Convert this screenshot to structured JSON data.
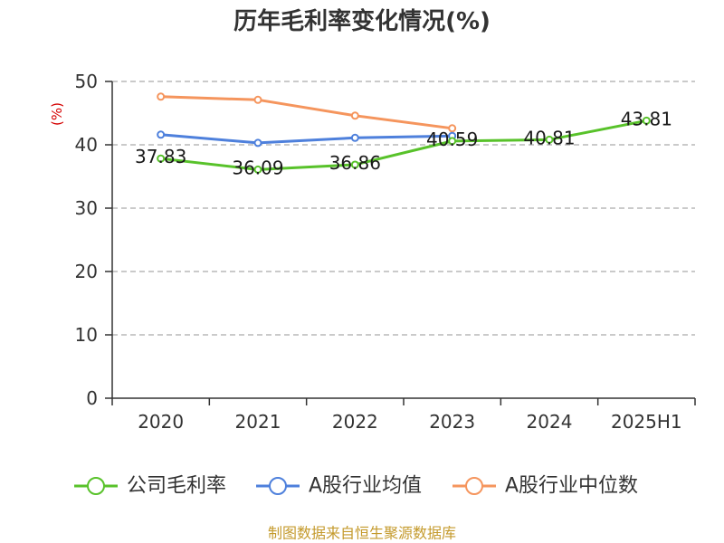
{
  "chart_data": {
    "type": "line",
    "title": "历年毛利率变化情况(%)",
    "ylabel": "(%)",
    "categories": [
      "2020",
      "2021",
      "2022",
      "2023",
      "2024",
      "2025H1"
    ],
    "ylim": [
      0,
      50
    ],
    "yticks": [
      0,
      10,
      20,
      30,
      40,
      50
    ],
    "grid": true,
    "legend": "bottom",
    "series": [
      {
        "name": "公司毛利率",
        "color": "#58c22a",
        "data_labels": true,
        "values": [
          37.83,
          36.09,
          36.86,
          40.59,
          40.81,
          43.81
        ]
      },
      {
        "name": "A股行业均值",
        "color": "#4e80dc",
        "data_labels": false,
        "values": [
          41.6,
          40.3,
          41.1,
          41.4,
          null,
          null
        ]
      },
      {
        "name": "A股行业中位数",
        "color": "#f5955d",
        "data_labels": false,
        "values": [
          47.6,
          47.1,
          44.6,
          42.6,
          null,
          null
        ]
      }
    ]
  },
  "footer": {
    "source": "制图数据来自恒生聚源数据库"
  }
}
